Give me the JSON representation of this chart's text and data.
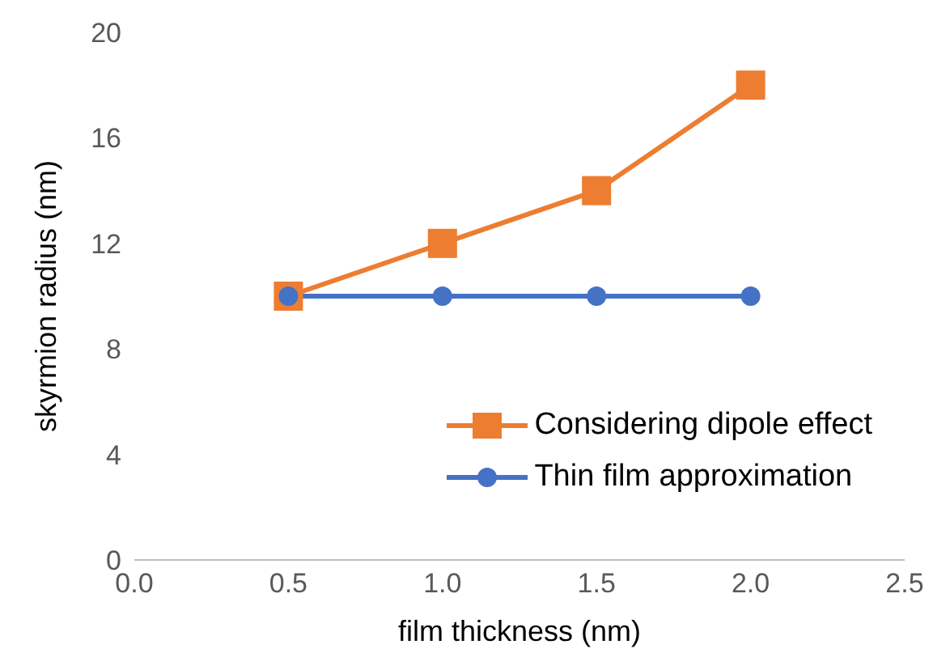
{
  "chart_data": {
    "type": "line",
    "xlabel": "film thickness (nm)",
    "ylabel": "skyrmion radius (nm)",
    "x": [
      0.5,
      1.0,
      1.5,
      2.0
    ],
    "series": [
      {
        "name": "Considering dipole effect",
        "color": "#ed7d31",
        "values": [
          10,
          12,
          14,
          18
        ],
        "marker": "square"
      },
      {
        "name": "Thin film approximation",
        "color": "#4472c4",
        "values": [
          10,
          10,
          10,
          10
        ],
        "marker": "circle"
      }
    ],
    "xlim": [
      0,
      2.5
    ],
    "xticks": [
      {
        "value": 0,
        "label": "0.0"
      },
      {
        "value": 0.5,
        "label": "0.5"
      },
      {
        "value": 1,
        "label": "1.0"
      },
      {
        "value": 1.5,
        "label": "1.5"
      },
      {
        "value": 2,
        "label": "2.0"
      },
      {
        "value": 2.5,
        "label": "2.5"
      }
    ],
    "ylim": [
      0,
      20
    ],
    "yticks": [
      0,
      4,
      8,
      12,
      16,
      20
    ],
    "grid": false,
    "legend": "bottom right"
  }
}
